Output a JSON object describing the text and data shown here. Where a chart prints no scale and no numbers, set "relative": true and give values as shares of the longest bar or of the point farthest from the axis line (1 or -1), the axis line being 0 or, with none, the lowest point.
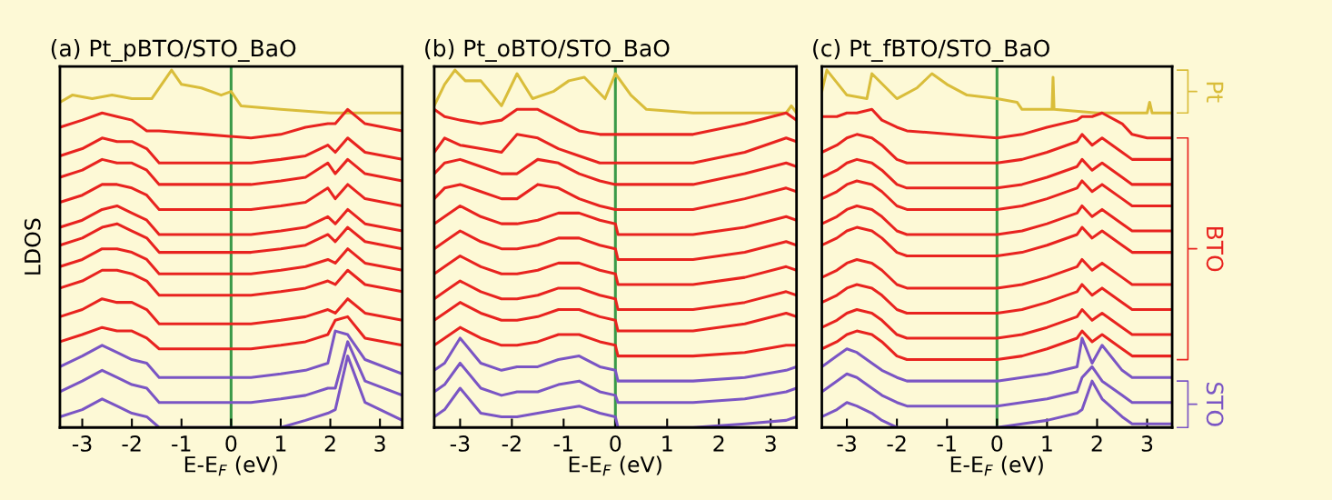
{
  "chart_data": [
    {
      "type": "line",
      "title": "(a) Pt_pBTO/STO_BaO",
      "xlabel": "E-E$_{F}$ (eV)",
      "ylabel": "LDOS",
      "relative": true,
      "tick_labels": "x",
      "xlim": [
        -3.45,
        3.45
      ],
      "xticks": [
        -3,
        -2,
        -1,
        0,
        1,
        2,
        3
      ],
      "x": [
        -3.45,
        -3.0,
        -2.6,
        -2.3,
        -2.0,
        -1.7,
        -1.45,
        -0.5,
        0.4,
        1.0,
        1.5,
        1.95,
        2.1,
        2.35,
        2.7,
        3.45
      ],
      "ref_lines": [
        {
          "axis": "x",
          "value": 0,
          "color": "#3a9a48"
        }
      ],
      "series": [
        {
          "color": "#d9bd3a",
          "x": [
            -3.45,
            -3.2,
            -2.8,
            -2.4,
            -2.0,
            -1.6,
            -1.4,
            -1.2,
            -1.0,
            -0.6,
            -0.2,
            0,
            0.2,
            1.0,
            2.0,
            3.45
          ],
          "values": [
            0.91,
            0.93,
            0.92,
            0.93,
            0.92,
            0.92,
            0.96,
            1.0,
            0.96,
            0.95,
            0.93,
            0.94,
            0.9,
            0.89,
            0.88,
            0.88
          ]
        },
        {
          "color": "#e8231f",
          "values": [
            0.84,
            0.86,
            0.88,
            0.87,
            0.86,
            0.83,
            0.83,
            0.82,
            0.81,
            0.82,
            0.84,
            0.85,
            0.85,
            0.89,
            0.85,
            0.83
          ]
        },
        {
          "color": "#e8231f",
          "values": [
            0.76,
            0.78,
            0.81,
            0.8,
            0.8,
            0.78,
            0.74,
            0.74,
            0.74,
            0.75,
            0.76,
            0.79,
            0.77,
            0.81,
            0.77,
            0.75
          ]
        },
        {
          "color": "#e8231f",
          "values": [
            0.7,
            0.72,
            0.75,
            0.74,
            0.74,
            0.72,
            0.68,
            0.68,
            0.68,
            0.69,
            0.7,
            0.74,
            0.71,
            0.75,
            0.71,
            0.69
          ]
        },
        {
          "color": "#e8231f",
          "values": [
            0.63,
            0.65,
            0.68,
            0.68,
            0.67,
            0.65,
            0.61,
            0.61,
            0.61,
            0.62,
            0.63,
            0.67,
            0.64,
            0.68,
            0.64,
            0.62
          ]
        },
        {
          "color": "#e8231f",
          "values": [
            0.56,
            0.58,
            0.61,
            0.62,
            0.6,
            0.58,
            0.54,
            0.54,
            0.54,
            0.55,
            0.56,
            0.59,
            0.57,
            0.61,
            0.57,
            0.55
          ]
        },
        {
          "color": "#e8231f",
          "values": [
            0.51,
            0.53,
            0.56,
            0.57,
            0.55,
            0.53,
            0.49,
            0.49,
            0.49,
            0.5,
            0.51,
            0.54,
            0.52,
            0.56,
            0.52,
            0.5
          ]
        },
        {
          "color": "#e8231f",
          "values": [
            0.45,
            0.47,
            0.5,
            0.5,
            0.49,
            0.47,
            0.43,
            0.43,
            0.43,
            0.44,
            0.45,
            0.47,
            0.46,
            0.5,
            0.46,
            0.44
          ]
        },
        {
          "color": "#e8231f",
          "values": [
            0.39,
            0.41,
            0.44,
            0.44,
            0.43,
            0.41,
            0.37,
            0.37,
            0.37,
            0.38,
            0.39,
            0.41,
            0.4,
            0.44,
            0.4,
            0.38
          ]
        },
        {
          "color": "#e8231f",
          "values": [
            0.31,
            0.33,
            0.36,
            0.35,
            0.35,
            0.33,
            0.29,
            0.29,
            0.29,
            0.3,
            0.31,
            0.33,
            0.32,
            0.36,
            0.32,
            0.3
          ]
        },
        {
          "color": "#e8231f",
          "values": [
            0.24,
            0.26,
            0.28,
            0.27,
            0.27,
            0.25,
            0.22,
            0.22,
            0.22,
            0.23,
            0.24,
            0.26,
            0.3,
            0.31,
            0.25,
            0.23
          ]
        },
        {
          "color": "#7a55c4",
          "values": [
            0.17,
            0.2,
            0.23,
            0.21,
            0.19,
            0.18,
            0.14,
            0.14,
            0.14,
            0.15,
            0.16,
            0.18,
            0.27,
            0.26,
            0.19,
            0.15
          ]
        },
        {
          "color": "#7a55c4",
          "values": [
            0.1,
            0.13,
            0.16,
            0.14,
            0.12,
            0.11,
            0.07,
            0.07,
            0.07,
            0.08,
            0.09,
            0.11,
            0.11,
            0.24,
            0.13,
            0.09
          ]
        },
        {
          "color": "#7a55c4",
          "values": [
            0.03,
            0.05,
            0.08,
            0.06,
            0.04,
            0.03,
            0,
            0,
            0,
            0,
            0.02,
            0.04,
            0.05,
            0.2,
            0.07,
            0.02
          ]
        }
      ]
    },
    {
      "type": "line",
      "title": "(b) Pt_oBTO/STO_BaO",
      "xlabel": "E-E$_{F}$ (eV)",
      "relative": true,
      "tick_labels": "x",
      "xlim": [
        -3.5,
        3.5
      ],
      "xticks": [
        -3,
        -2,
        -1,
        0,
        1,
        2,
        3
      ],
      "x": [
        -3.5,
        -3.3,
        -3.0,
        -2.6,
        -2.2,
        -1.9,
        -1.5,
        -1.1,
        -0.7,
        -0.3,
        0.0,
        0.05,
        1.5,
        2.5,
        3.3,
        3.5
      ],
      "ref_lines": [
        {
          "axis": "x",
          "value": 0,
          "color": "#3a9a48"
        }
      ],
      "series": [
        {
          "color": "#d9bd3a",
          "x": [
            -3.5,
            -3.3,
            -3.1,
            -2.9,
            -2.6,
            -2.2,
            -1.9,
            -1.6,
            -1.2,
            -0.9,
            -0.6,
            -0.2,
            0.0,
            0.3,
            0.6,
            1.5,
            3.3,
            3.4,
            3.5
          ],
          "values": [
            0.9,
            0.96,
            1.0,
            0.97,
            0.97,
            0.9,
            0.99,
            0.92,
            0.94,
            0.97,
            0.98,
            0.92,
            0.99,
            0.93,
            0.89,
            0.88,
            0.88,
            0.9,
            0.88
          ]
        },
        {
          "color": "#e8231f",
          "values": [
            0.89,
            0.87,
            0.86,
            0.85,
            0.86,
            0.89,
            0.89,
            0.86,
            0.83,
            0.82,
            0.82,
            0.82,
            0.82,
            0.85,
            0.88,
            0.86
          ]
        },
        {
          "color": "#e8231f",
          "values": [
            0.77,
            0.81,
            0.79,
            0.78,
            0.77,
            0.82,
            0.81,
            0.78,
            0.76,
            0.74,
            0.74,
            0.74,
            0.74,
            0.77,
            0.81,
            0.8
          ]
        },
        {
          "color": "#e8231f",
          "values": [
            0.71,
            0.74,
            0.75,
            0.73,
            0.71,
            0.71,
            0.75,
            0.74,
            0.71,
            0.69,
            0.68,
            0.68,
            0.68,
            0.71,
            0.74,
            0.73
          ]
        },
        {
          "color": "#e8231f",
          "values": [
            0.64,
            0.67,
            0.68,
            0.66,
            0.64,
            0.64,
            0.68,
            0.67,
            0.64,
            0.62,
            0.61,
            0.61,
            0.61,
            0.64,
            0.67,
            0.66
          ]
        },
        {
          "color": "#e8231f",
          "values": [
            0.57,
            0.59,
            0.62,
            0.59,
            0.57,
            0.57,
            0.58,
            0.6,
            0.6,
            0.58,
            0.57,
            0.54,
            0.54,
            0.56,
            0.59,
            0.58
          ]
        },
        {
          "color": "#e8231f",
          "values": [
            0.5,
            0.52,
            0.55,
            0.52,
            0.5,
            0.5,
            0.51,
            0.53,
            0.53,
            0.51,
            0.5,
            0.47,
            0.47,
            0.49,
            0.52,
            0.51
          ]
        },
        {
          "color": "#e8231f",
          "values": [
            0.43,
            0.45,
            0.48,
            0.45,
            0.43,
            0.43,
            0.44,
            0.46,
            0.46,
            0.44,
            0.43,
            0.4,
            0.4,
            0.42,
            0.45,
            0.44
          ]
        },
        {
          "color": "#e8231f",
          "values": [
            0.36,
            0.38,
            0.41,
            0.38,
            0.36,
            0.36,
            0.37,
            0.39,
            0.39,
            0.37,
            0.36,
            0.33,
            0.33,
            0.35,
            0.38,
            0.37
          ]
        },
        {
          "color": "#e8231f",
          "values": [
            0.3,
            0.32,
            0.35,
            0.32,
            0.3,
            0.3,
            0.31,
            0.33,
            0.33,
            0.31,
            0.3,
            0.27,
            0.27,
            0.29,
            0.32,
            0.31
          ]
        },
        {
          "color": "#e8231f",
          "values": [
            0.23,
            0.25,
            0.28,
            0.25,
            0.23,
            0.23,
            0.24,
            0.26,
            0.26,
            0.24,
            0.23,
            0.2,
            0.2,
            0.21,
            0.23,
            0.23
          ]
        },
        {
          "color": "#7a55c4",
          "values": [
            0.16,
            0.18,
            0.25,
            0.18,
            0.16,
            0.17,
            0.17,
            0.19,
            0.2,
            0.17,
            0.16,
            0.13,
            0.13,
            0.14,
            0.16,
            0.17
          ]
        },
        {
          "color": "#7a55c4",
          "values": [
            0.1,
            0.12,
            0.18,
            0.11,
            0.09,
            0.1,
            0.1,
            0.12,
            0.13,
            0.1,
            0.09,
            0.07,
            0.07,
            0.08,
            0.1,
            0.11
          ]
        },
        {
          "color": "#7a55c4",
          "values": [
            0.03,
            0.05,
            0.11,
            0.04,
            0.03,
            0.03,
            0.04,
            0.05,
            0.06,
            0.04,
            0.03,
            0,
            0,
            0.01,
            0.02,
            0.03
          ]
        }
      ]
    },
    {
      "type": "line",
      "title": "(c) Pt_fBTO/STO_BaO",
      "xlabel": "E-E$_{F}$ (eV)",
      "relative": true,
      "tick_labels": "x",
      "xlim": [
        -3.5,
        3.5
      ],
      "xticks": [
        -3,
        -2,
        -1,
        0,
        1,
        2,
        3
      ],
      "x": [
        -3.5,
        -3.2,
        -3.0,
        -2.8,
        -2.5,
        -2.3,
        -2.0,
        -1.8,
        0.0,
        0.5,
        1.0,
        1.6,
        1.7,
        1.9,
        2.1,
        2.5,
        2.7,
        3.0,
        3.5
      ],
      "ref_lines": [
        {
          "axis": "x",
          "value": 0,
          "color": "#3a9a48"
        }
      ],
      "annotations": [
        "Pt",
        "BTO",
        "STO"
      ],
      "series": [
        {
          "color": "#d9bd3a",
          "x": [
            -3.5,
            -3.4,
            -3.0,
            -2.6,
            -2.5,
            -2.0,
            -1.6,
            -1.3,
            -1.0,
            -0.6,
            0.0,
            0.4,
            0.5,
            1.1,
            1.12,
            1.14,
            2.0,
            3.0,
            3.05,
            3.1,
            3.5
          ],
          "values": [
            0.94,
            1.0,
            0.93,
            0.92,
            0.99,
            0.92,
            0.95,
            0.99,
            0.96,
            0.93,
            0.92,
            0.91,
            0.89,
            0.89,
            0.98,
            0.89,
            0.88,
            0.88,
            0.91,
            0.88,
            0.88
          ]
        },
        {
          "color": "#e8231f",
          "values": [
            0.87,
            0.87,
            0.88,
            0.88,
            0.89,
            0.86,
            0.84,
            0.83,
            0.81,
            0.82,
            0.84,
            0.86,
            0.87,
            0.87,
            0.88,
            0.85,
            0.82,
            0.81,
            0.81
          ]
        },
        {
          "color": "#e8231f",
          "values": [
            0.77,
            0.79,
            0.81,
            0.82,
            0.81,
            0.79,
            0.75,
            0.74,
            0.74,
            0.75,
            0.77,
            0.8,
            0.82,
            0.79,
            0.81,
            0.77,
            0.75,
            0.75,
            0.75
          ]
        },
        {
          "color": "#e8231f",
          "values": [
            0.7,
            0.72,
            0.74,
            0.75,
            0.74,
            0.72,
            0.68,
            0.67,
            0.67,
            0.68,
            0.7,
            0.73,
            0.75,
            0.72,
            0.74,
            0.7,
            0.68,
            0.68,
            0.68
          ]
        },
        {
          "color": "#e8231f",
          "values": [
            0.64,
            0.66,
            0.68,
            0.69,
            0.68,
            0.66,
            0.62,
            0.61,
            0.61,
            0.62,
            0.64,
            0.67,
            0.69,
            0.66,
            0.68,
            0.64,
            0.62,
            0.62,
            0.62
          ]
        },
        {
          "color": "#e8231f",
          "values": [
            0.57,
            0.59,
            0.61,
            0.62,
            0.61,
            0.59,
            0.55,
            0.54,
            0.54,
            0.55,
            0.57,
            0.6,
            0.62,
            0.59,
            0.61,
            0.57,
            0.55,
            0.55,
            0.55
          ]
        },
        {
          "color": "#e8231f",
          "values": [
            0.51,
            0.53,
            0.55,
            0.56,
            0.55,
            0.53,
            0.49,
            0.48,
            0.48,
            0.49,
            0.51,
            0.54,
            0.56,
            0.53,
            0.55,
            0.51,
            0.49,
            0.49,
            0.49
          ]
        },
        {
          "color": "#e8231f",
          "values": [
            0.42,
            0.44,
            0.46,
            0.47,
            0.46,
            0.44,
            0.4,
            0.39,
            0.39,
            0.4,
            0.42,
            0.45,
            0.47,
            0.44,
            0.46,
            0.42,
            0.4,
            0.4,
            0.4
          ]
        },
        {
          "color": "#e8231f",
          "values": [
            0.35,
            0.37,
            0.39,
            0.4,
            0.39,
            0.37,
            0.33,
            0.32,
            0.32,
            0.33,
            0.35,
            0.38,
            0.4,
            0.37,
            0.39,
            0.35,
            0.33,
            0.33,
            0.33
          ]
        },
        {
          "color": "#e8231f",
          "values": [
            0.28,
            0.3,
            0.32,
            0.33,
            0.32,
            0.3,
            0.26,
            0.25,
            0.25,
            0.26,
            0.28,
            0.31,
            0.33,
            0.3,
            0.32,
            0.28,
            0.26,
            0.26,
            0.26
          ]
        },
        {
          "color": "#e8231f",
          "values": [
            0.22,
            0.24,
            0.26,
            0.27,
            0.26,
            0.24,
            0.2,
            0.19,
            0.19,
            0.2,
            0.22,
            0.25,
            0.27,
            0.24,
            0.26,
            0.22,
            0.2,
            0.2,
            0.2
          ]
        },
        {
          "color": "#7a55c4",
          "values": [
            0.17,
            0.2,
            0.22,
            0.21,
            0.18,
            0.16,
            0.14,
            0.13,
            0.13,
            0.14,
            0.15,
            0.17,
            0.25,
            0.18,
            0.23,
            0.16,
            0.14,
            0.14,
            0.14
          ]
        },
        {
          "color": "#7a55c4",
          "values": [
            0.1,
            0.13,
            0.15,
            0.14,
            0.11,
            0.09,
            0.07,
            0.06,
            0.06,
            0.07,
            0.08,
            0.1,
            0.14,
            0.17,
            0.13,
            0.09,
            0.07,
            0.07,
            0.07
          ]
        },
        {
          "color": "#7a55c4",
          "values": [
            0.03,
            0.05,
            0.07,
            0.06,
            0.04,
            0.02,
            0,
            0,
            0,
            0.01,
            0.02,
            0.04,
            0.05,
            0.13,
            0.08,
            0.03,
            0.01,
            0.01,
            0.01
          ]
        }
      ]
    }
  ]
}
